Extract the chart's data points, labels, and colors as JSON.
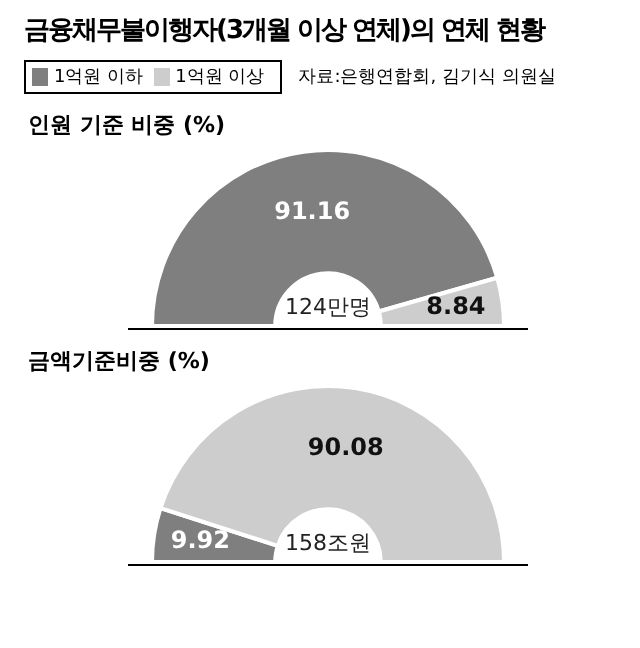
{
  "chart_data": [
    {
      "type": "donut",
      "title": "금융채무불이행자(3개월 이상 연체)의 연체 현황",
      "subtitle": "인원 기준 비중 (%)",
      "categories": [
        "1억원 이하",
        "1억원 이상"
      ],
      "values": [
        91.16,
        8.84
      ],
      "colors": [
        "#7f7f7f",
        "#cdcdcd"
      ],
      "data_labels": true,
      "legend": "top left",
      "annotations": [
        "자료:은행연합회, 김기식 의원실",
        "124만명"
      ]
    },
    {
      "type": "donut",
      "title": "금액기준비중 (%)",
      "values": [
        9.92,
        90.08
      ],
      "colors": [
        "#7f7f7f",
        "#cdcdcd"
      ],
      "data_labels": true,
      "annotations": [
        "158조원"
      ]
    }
  ]
}
